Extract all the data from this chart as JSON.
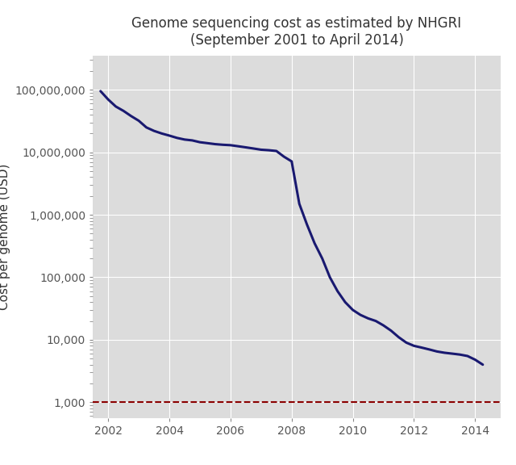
{
  "title": "Genome sequencing cost as estimated by NHGRI\n(September 2001 to April 2014)",
  "ylabel": "Cost per genome (USD)",
  "background_color": "#DCDCDC",
  "figure_background": "#FFFFFF",
  "line_color": "#191970",
  "dashed_line_color": "#8B0000",
  "dashed_line_value": 1000,
  "line_width": 2.2,
  "xlim": [
    2001.5,
    2014.83
  ],
  "ylim_log": [
    550,
    350000000
  ],
  "xticks": [
    2002,
    2004,
    2006,
    2008,
    2010,
    2012,
    2014
  ],
  "yticks": [
    1000,
    10000,
    100000,
    1000000,
    10000000,
    100000000
  ],
  "ytick_labels": [
    "1,000",
    "10,000",
    "100,000",
    "1,000,000",
    "10,000,000",
    "100,000,000"
  ],
  "data_x": [
    2001.75,
    2002.0,
    2002.25,
    2002.5,
    2002.75,
    2003.0,
    2003.25,
    2003.5,
    2003.75,
    2004.0,
    2004.25,
    2004.5,
    2004.75,
    2005.0,
    2005.25,
    2005.5,
    2005.75,
    2006.0,
    2006.25,
    2006.5,
    2006.75,
    2007.0,
    2007.25,
    2007.5,
    2007.75,
    2008.0,
    2008.25,
    2008.5,
    2008.75,
    2009.0,
    2009.25,
    2009.5,
    2009.75,
    2010.0,
    2010.25,
    2010.5,
    2010.75,
    2011.0,
    2011.25,
    2011.5,
    2011.75,
    2012.0,
    2012.25,
    2012.5,
    2012.75,
    2013.0,
    2013.25,
    2013.5,
    2013.75,
    2014.0,
    2014.25
  ],
  "data_y": [
    95263072,
    70000000,
    54000000,
    46000000,
    38000000,
    32000000,
    25000000,
    22000000,
    20000000,
    18500000,
    17000000,
    16000000,
    15500000,
    14500000,
    14000000,
    13500000,
    13200000,
    13000000,
    12500000,
    12000000,
    11500000,
    11000000,
    10800000,
    10500000,
    8500000,
    7148000,
    1500000,
    700000,
    350000,
    200000,
    100000,
    60000,
    40000,
    30000,
    25000,
    22000,
    20000,
    17000,
    14000,
    11000,
    9000,
    8000,
    7500,
    7000,
    6500,
    6200,
    6000,
    5800,
    5500,
    4800,
    4000
  ]
}
